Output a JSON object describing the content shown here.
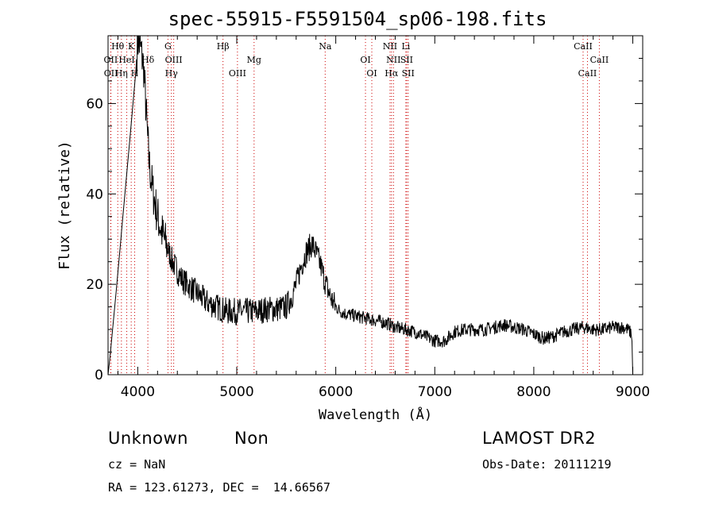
{
  "chart_data": {
    "type": "line",
    "title": "spec-55915-F5591504_sp06-198.fits",
    "xlabel": "Wavelength (Å)",
    "ylabel": "Flux (relative)",
    "xlim": [
      3700,
      9100
    ],
    "ylim": [
      0,
      75
    ],
    "x_ticks": [
      "4000",
      "5000",
      "6000",
      "7000",
      "8000",
      "9000"
    ],
    "y_ticks": [
      "0",
      "20",
      "40",
      "60"
    ],
    "grid": false,
    "series": [
      {
        "x": [
          3700,
          3720,
          3780,
          3850,
          3920,
          3980,
          4000,
          4030,
          4060,
          4080,
          4100,
          4120,
          4150,
          4200,
          4250,
          4300,
          4350,
          4400,
          4450,
          4500,
          4600,
          4700,
          4800,
          4900,
          5000,
          5100,
          5200,
          5300,
          5400,
          5500,
          5550,
          5600,
          5650,
          5700,
          5730,
          5760,
          5800,
          5850,
          5900,
          5950,
          6000,
          6050,
          6100,
          6200,
          6300,
          6400,
          6500,
          6560,
          6600,
          6700,
          6800,
          6900,
          7000,
          7100,
          7150,
          7200,
          7300,
          7400,
          7500,
          7600,
          7700,
          7800,
          7900,
          7950,
          8000,
          8100,
          8200,
          8300,
          8400,
          8500,
          8600,
          8700,
          8800,
          8900,
          8950,
          8990,
          9000
        ],
        "y": [
          0,
          4,
          18,
          35,
          52,
          67,
          74,
          72,
          68,
          60,
          52,
          46,
          41,
          35,
          31,
          28,
          25,
          23,
          21,
          20,
          18,
          16,
          15,
          14,
          14,
          14,
          14,
          14.5,
          14.5,
          15,
          17,
          20,
          24,
          27,
          28,
          29,
          27,
          24,
          20,
          17,
          15,
          14,
          13.5,
          13,
          12.5,
          12,
          11.5,
          11,
          10.5,
          10,
          9.5,
          8.5,
          7.5,
          7.5,
          8.5,
          9.5,
          10,
          10,
          10,
          10.5,
          11,
          10.5,
          10,
          9.5,
          9,
          8,
          8.5,
          9.5,
          10,
          10.5,
          10,
          10,
          10.5,
          10.5,
          10,
          9,
          0
        ]
      }
    ],
    "line_markers": [
      {
        "name": "Hθ",
        "x": 3798,
        "row": 0
      },
      {
        "name": "K",
        "x": 3934,
        "row": 0
      },
      {
        "name": "G",
        "x": 4305,
        "row": 0
      },
      {
        "name": "Hβ",
        "x": 4861,
        "row": 0
      },
      {
        "name": "Na",
        "x": 5893,
        "row": 0
      },
      {
        "name": "NII",
        "x": 6548,
        "row": 0
      },
      {
        "name": "Li",
        "x": 6708,
        "row": 0
      },
      {
        "name": "CaII",
        "x": 8498,
        "row": 0
      },
      {
        "name": "OII",
        "x": 3727,
        "row": 1
      },
      {
        "name": "HeI",
        "x": 3889,
        "row": 1
      },
      {
        "name": "Hδ",
        "x": 4102,
        "row": 1
      },
      {
        "name": "OIII",
        "x": 4363,
        "row": 1
      },
      {
        "name": "Mg",
        "x": 5175,
        "row": 1
      },
      {
        "name": "OI",
        "x": 6300,
        "row": 1
      },
      {
        "name": "NII",
        "x": 6583,
        "row": 1
      },
      {
        "name": "SII",
        "x": 6716,
        "row": 1
      },
      {
        "name": "CaII",
        "x": 8662,
        "row": 1
      },
      {
        "name": "OII",
        "x": 3729,
        "row": 2
      },
      {
        "name": "Hη",
        "x": 3835,
        "row": 2
      },
      {
        "name": "H",
        "x": 3969,
        "row": 2
      },
      {
        "name": "Hγ",
        "x": 4340,
        "row": 2
      },
      {
        "name": "OIII",
        "x": 5007,
        "row": 2
      },
      {
        "name": "OI",
        "x": 6364,
        "row": 2
      },
      {
        "name": "Hα",
        "x": 6563,
        "row": 2
      },
      {
        "name": "SII",
        "x": 6731,
        "row": 2
      },
      {
        "name": "CaII",
        "x": 8542,
        "row": 2
      }
    ],
    "line_colors": {
      "default": "#000000",
      "marker": "#cc0000"
    }
  },
  "info": {
    "class": "Unknown",
    "subclass": "Non",
    "survey": "LAMOST DR2",
    "cz": "cz = NaN",
    "obs_date": "Obs-Date: 20111219",
    "coords": "RA = 123.61273, DEC =  14.66567"
  }
}
